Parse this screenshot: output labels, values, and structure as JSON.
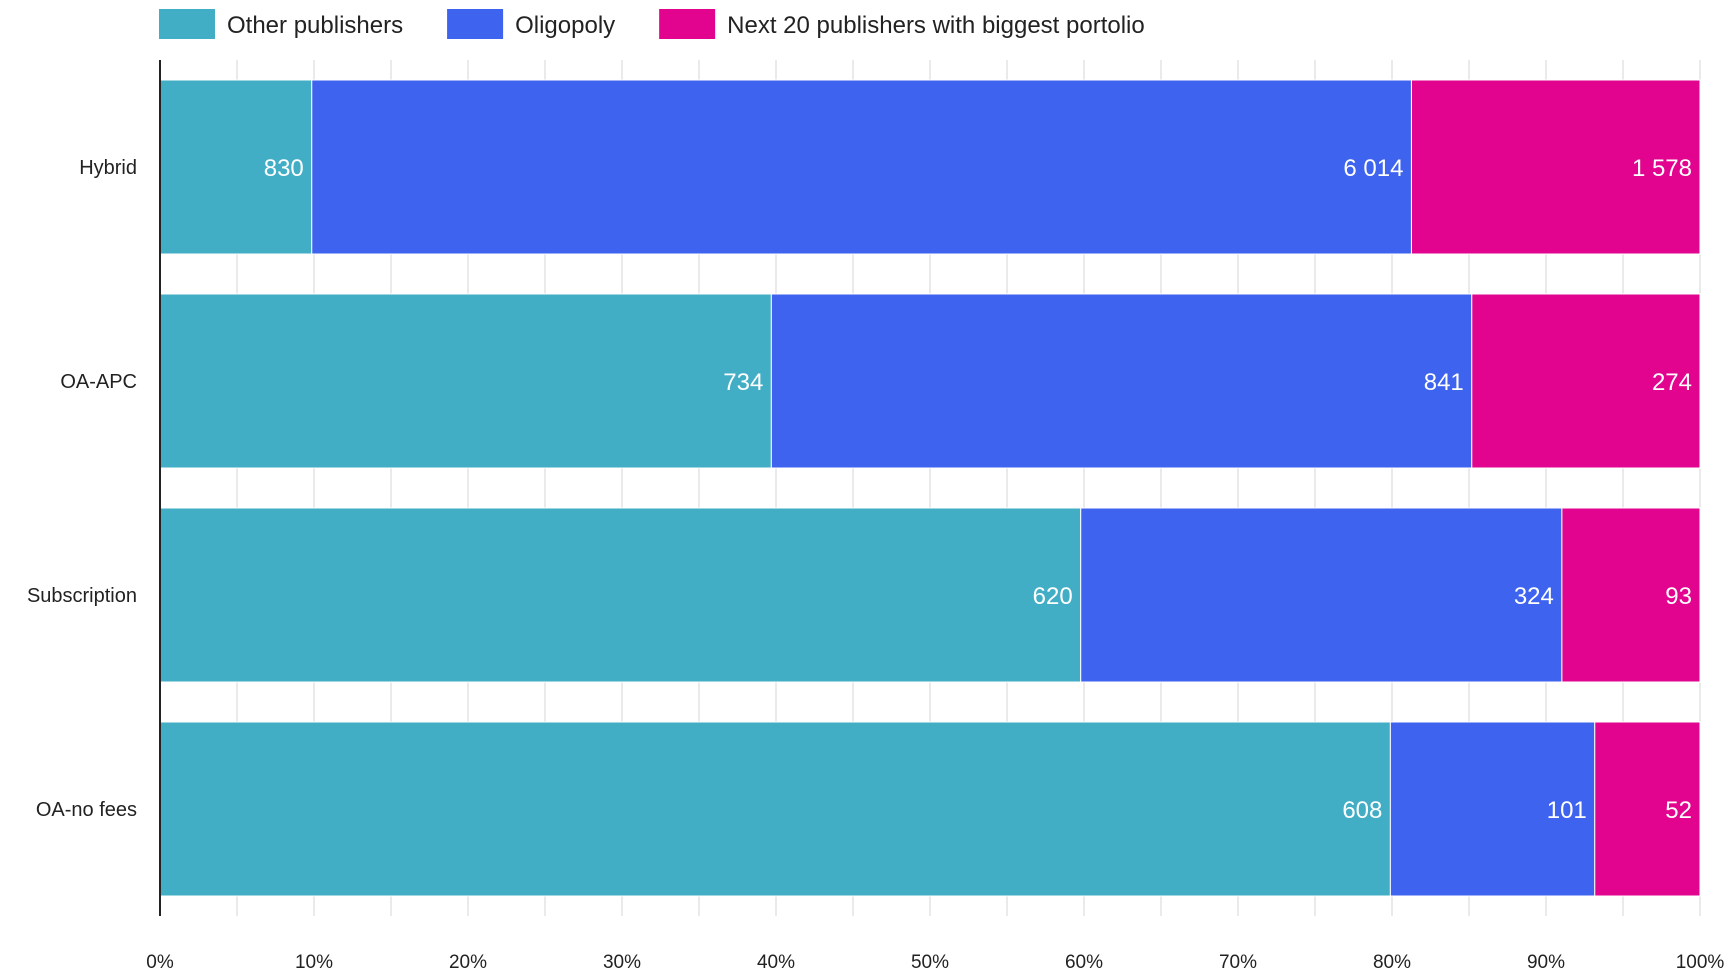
{
  "chart_data": {
    "type": "bar",
    "orientation": "horizontal",
    "stacked": "percent",
    "title": "",
    "xlabel": "",
    "ylabel": "",
    "xlim": [
      0,
      100
    ],
    "grid": true,
    "legend_position": "top-left",
    "categories": [
      "Hybrid",
      "OA-APC",
      "Subscription",
      "OA-no fees"
    ],
    "series": [
      {
        "name": "Other publishers",
        "color": "#42AEC6",
        "values": [
          830,
          734,
          620,
          608
        ],
        "labels": [
          "830",
          "734",
          "620",
          "608"
        ]
      },
      {
        "name": "Oligopoly",
        "color": "#3D63EF",
        "values": [
          6014,
          841,
          324,
          101
        ],
        "labels": [
          "6 014",
          "841",
          "324",
          "101"
        ]
      },
      {
        "name": "Next 20 publishers with biggest portolio",
        "color": "#E2048F",
        "values": [
          1578,
          274,
          93,
          52
        ],
        "labels": [
          "1 578",
          "274",
          "93",
          "52"
        ]
      }
    ],
    "x_ticks": [
      "0%",
      "10%",
      "20%",
      "30%",
      "40%",
      "50%",
      "60%",
      "70%",
      "80%",
      "90%",
      "100%"
    ]
  }
}
